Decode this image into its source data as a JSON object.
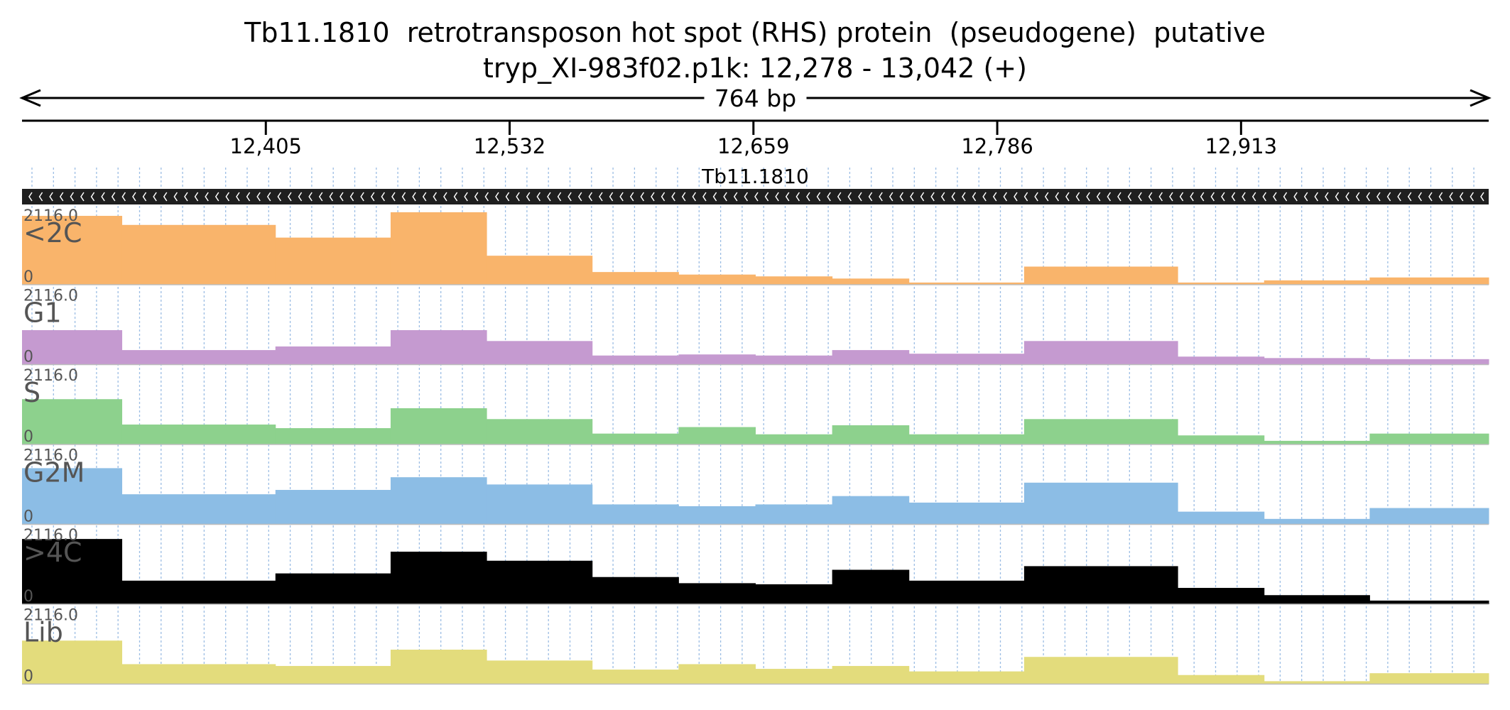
{
  "title": {
    "line1": "Tb11.1810  retrotransposon hot spot (RHS) protein  (pseudogene)  putative",
    "line2": "tryp_XI-983f02.p1k: 12,278 - 13,042 (+)"
  },
  "colors": {
    "<2C": "#f9b46b",
    "G1": "#c59ad0",
    "S": "#8dd18d",
    "G2M": "#8cbde5",
    "&gt;4C": "#f3a1cd",
    "Lib": "#e3dc7c",
    "gene_bar": "#1f1f1f",
    "grid": "#9bbde4"
  },
  "chart_data": {
    "type": "bar",
    "region_start": 12278,
    "region_end": 13042,
    "span_label": "764 bp",
    "ticks": [
      12405,
      12532,
      12659,
      12786,
      12913
    ],
    "tick_labels": [
      "12,405",
      "12,532",
      "12,659",
      "12,786",
      "12,913"
    ],
    "gene": {
      "name": "Tb11.1810",
      "strand": "-",
      "start": 12278,
      "end": 13042
    },
    "track_max_label": "2116.0",
    "track_min_label": "0",
    "ylim": [
      0,
      2116
    ],
    "segment_boundaries": [
      12278,
      12330,
      12410,
      12470,
      12520,
      12575,
      12620,
      12660,
      12700,
      12740,
      12800,
      12880,
      12925,
      12980,
      13042
    ],
    "tracks": [
      {
        "name": "<2C",
        "segment_values": [
          1900,
          1650,
          1300,
          2000,
          800,
          350,
          280,
          230,
          170,
          60,
          500,
          60,
          120,
          200
        ]
      },
      {
        "name": "G1",
        "segment_values": [
          950,
          400,
          500,
          950,
          650,
          250,
          280,
          250,
          400,
          300,
          650,
          220,
          180,
          150
        ]
      },
      {
        "name": "S",
        "segment_values": [
          1250,
          550,
          450,
          1000,
          700,
          300,
          480,
          280,
          530,
          280,
          700,
          250,
          100,
          300
        ]
      },
      {
        "name": "G2M",
        "segment_values": [
          1550,
          830,
          950,
          1300,
          1100,
          550,
          500,
          550,
          780,
          600,
          1150,
          350,
          150,
          450
        ]
      },
      {
        "name": ">4C",
        "segment_values": [
          1800,
          650,
          850,
          1450,
          1200,
          750,
          580,
          550,
          950,
          650,
          1050,
          450,
          250,
          100
        ]
      },
      {
        "name": "Lib",
        "segment_values": [
          1200,
          550,
          500,
          950,
          650,
          400,
          550,
          420,
          500,
          350,
          750,
          250,
          80,
          300
        ]
      }
    ]
  }
}
